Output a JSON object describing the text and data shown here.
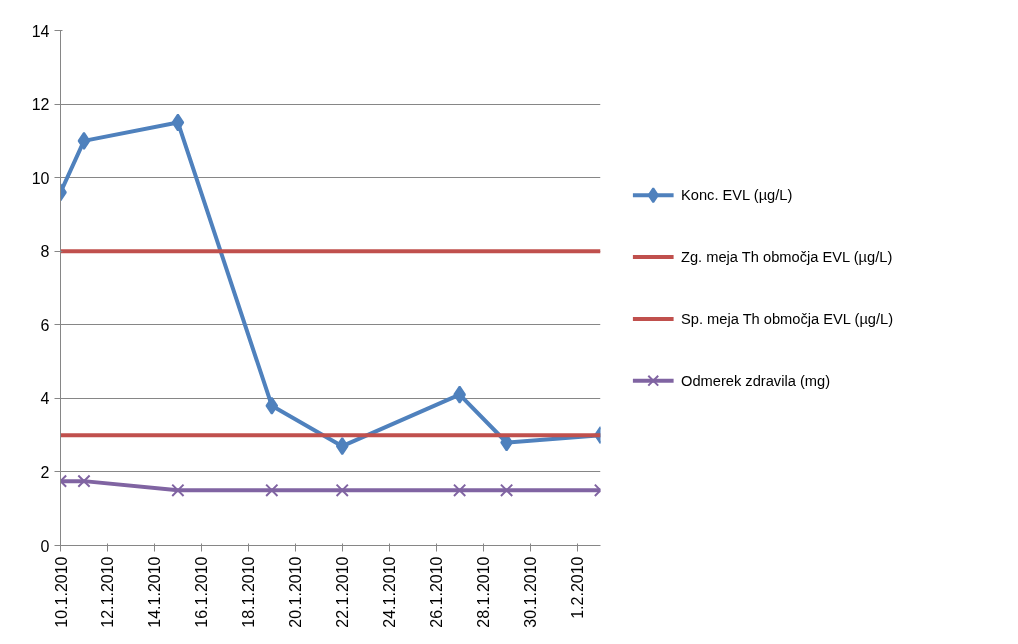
{
  "chart_data": {
    "type": "line",
    "x": [
      "2010-01-10",
      "2010-01-11",
      "2010-01-15",
      "2010-01-19",
      "2010-01-22",
      "2010-01-27",
      "2010-01-29",
      "2010-02-02"
    ],
    "series": [
      {
        "name": "Konc. EVL (µg/L)",
        "color": "#4f81bd",
        "marker": "diamond",
        "values": [
          9.6,
          11.0,
          11.5,
          3.8,
          2.7,
          4.1,
          2.8,
          3.0
        ]
      },
      {
        "name": "Zg. meja Th območja EVL (µg/L)",
        "color": "#c0504d",
        "marker": "none",
        "values": [
          8,
          8,
          8,
          8,
          8,
          8,
          8,
          8
        ]
      },
      {
        "name": "Sp. meja Th območja EVL (µg/L)",
        "color": "#c0504d",
        "marker": "none",
        "values": [
          3,
          3,
          3,
          3,
          3,
          3,
          3,
          3
        ]
      },
      {
        "name": "Odmerek zdravila (mg)",
        "color": "#8064a2",
        "marker": "cross",
        "values": [
          1.75,
          1.75,
          1.5,
          1.5,
          1.5,
          1.5,
          1.5,
          1.5
        ]
      }
    ],
    "xlim": [
      "2010-01-10",
      "2010-02-02"
    ],
    "xticks": [
      {
        "value": "2010-01-10",
        "label": "10.1.2010"
      },
      {
        "value": "2010-01-12",
        "label": "12.1.2010"
      },
      {
        "value": "2010-01-14",
        "label": "14.1.2010"
      },
      {
        "value": "2010-01-16",
        "label": "16.1.2010"
      },
      {
        "value": "2010-01-18",
        "label": "18.1.2010"
      },
      {
        "value": "2010-01-20",
        "label": "20.1.2010"
      },
      {
        "value": "2010-01-22",
        "label": "22.1.2010"
      },
      {
        "value": "2010-01-24",
        "label": "24.1.2010"
      },
      {
        "value": "2010-01-26",
        "label": "26.1.2010"
      },
      {
        "value": "2010-01-28",
        "label": "28.1.2010"
      },
      {
        "value": "2010-01-30",
        "label": "30.1.2010"
      },
      {
        "value": "2010-02-01",
        "label": "1.2.2010"
      }
    ],
    "ylim": [
      0,
      14
    ],
    "yticks": [
      0,
      2,
      4,
      6,
      8,
      10,
      12,
      14
    ],
    "grid": "y",
    "legend": "right",
    "line_style": "solid"
  }
}
